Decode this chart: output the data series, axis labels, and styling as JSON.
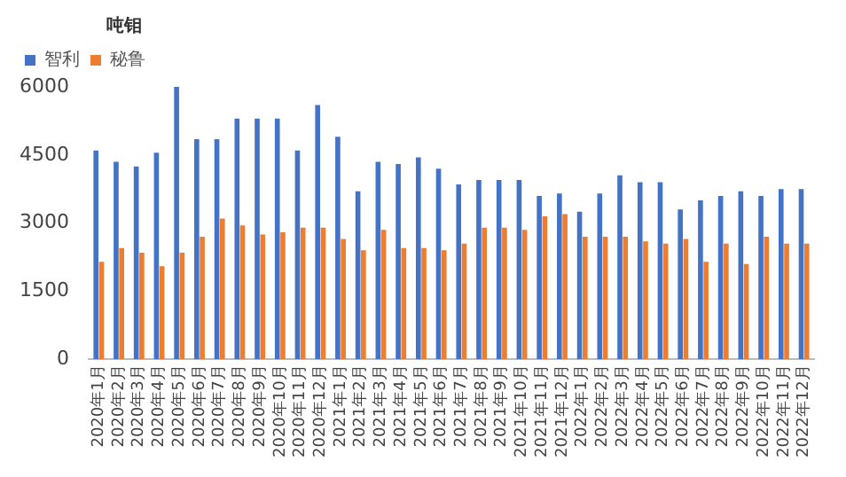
{
  "chart_data": {
    "type": "bar",
    "ylabel": "吨钼",
    "categories": [
      "2020年1月",
      "2020年2月",
      "2020年3月",
      "2020年4月",
      "2020年5月",
      "2020年6月",
      "2020年7月",
      "2020年8月",
      "2020年9月",
      "2020年10月",
      "2020年11月",
      "2020年12月",
      "2021年1月",
      "2021年2月",
      "2021年3月",
      "2021年4月",
      "2021年5月",
      "2021年6月",
      "2021年7月",
      "2021年8月",
      "2021年9月",
      "2021年10月",
      "2021年11月",
      "2021年12月",
      "2022年1月",
      "2022年2月",
      "2022年3月",
      "2022年4月",
      "2022年5月",
      "2022年6月",
      "2022年7月",
      "2022年8月",
      "2022年9月",
      "2022年10月",
      "2022年11月",
      "2022年12月"
    ],
    "series": [
      {
        "name": "智利",
        "color": "#4472c4",
        "values": [
          4600,
          4350,
          4250,
          4550,
          6000,
          4850,
          4850,
          5300,
          5300,
          5300,
          4600,
          5600,
          4900,
          3700,
          4350,
          4300,
          4450,
          4200,
          3850,
          3950,
          3950,
          3950,
          3600,
          3650,
          3250,
          3650,
          4050,
          3900,
          3900,
          3300,
          3500,
          3600,
          3700,
          3600,
          3750,
          3750
        ]
      },
      {
        "name": "秘鲁",
        "color": "#ed7d31",
        "values": [
          2150,
          2450,
          2350,
          2050,
          2350,
          2700,
          3100,
          2950,
          2750,
          2800,
          2900,
          2900,
          2650,
          2400,
          2850,
          2450,
          2450,
          2400,
          2550,
          2900,
          2900,
          2850,
          3150,
          3200,
          2700,
          2700,
          2700,
          2600,
          2550,
          2650,
          2150,
          2550,
          2100,
          2700,
          2550,
          2550
        ]
      }
    ],
    "ylim": [
      0,
      6000
    ],
    "yticks": [
      0,
      1500,
      3000,
      4500,
      6000
    ],
    "grid": false,
    "legend": "top left"
  }
}
